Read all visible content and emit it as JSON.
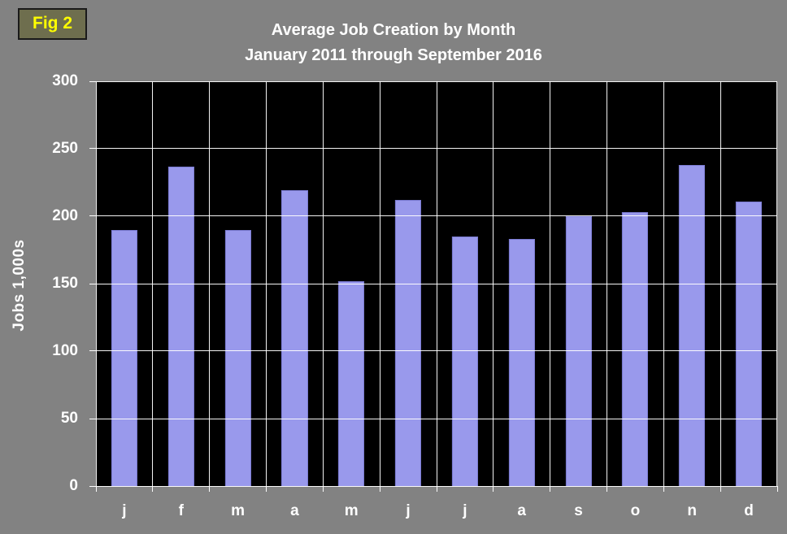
{
  "fig_label": "Fig 2",
  "chart_data": {
    "type": "bar",
    "title": "Average Job Creation by Month",
    "subtitle": "January 2011 through September 2016",
    "ylabel": "Jobs 1,000s",
    "categories": [
      "j",
      "f",
      "m",
      "a",
      "m",
      "j",
      "j",
      "a",
      "s",
      "o",
      "n",
      "d"
    ],
    "values": [
      190,
      237,
      190,
      219,
      152,
      212,
      185,
      183,
      200,
      203,
      238,
      211
    ],
    "ylim": [
      0,
      300
    ],
    "yticks": [
      300,
      250,
      200,
      150,
      100,
      50,
      0
    ],
    "grid": "on",
    "legend": "none",
    "bar_color": "#9999ec",
    "plot_background": "#000000",
    "page_background": "#828282",
    "fig_label_color": "#ffff00",
    "text_color": "#ffffff"
  }
}
